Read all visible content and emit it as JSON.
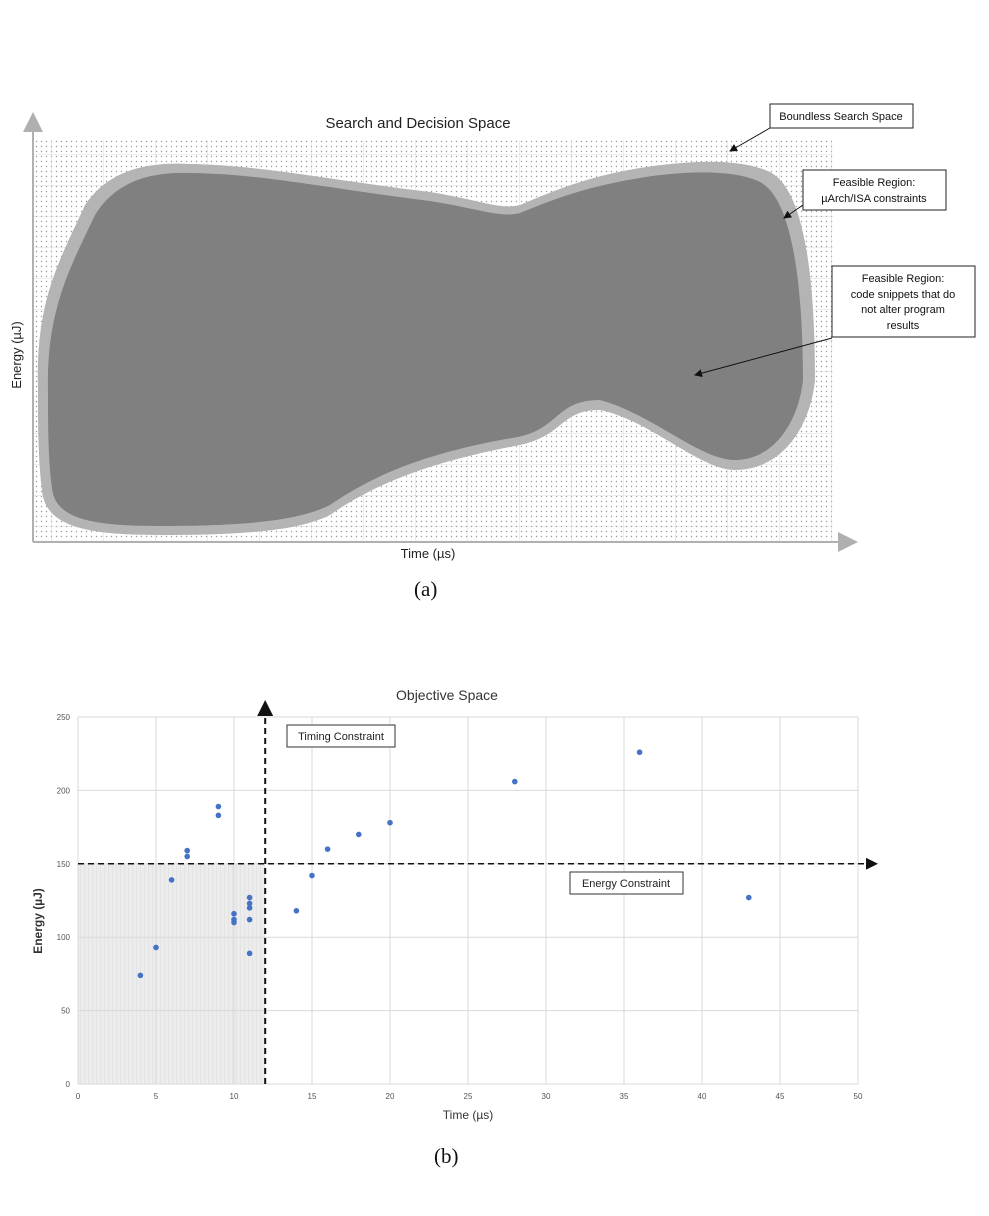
{
  "figure_a": {
    "title": "Search and Decision Space",
    "xlabel": "Time (µs)",
    "ylabel": "Energy (µJ)",
    "caption": "(a)",
    "annotations": {
      "boundless": "Boundless Search Space",
      "feasible_uarch": [
        "Feasible Region:",
        "µArch/ISA constraints"
      ],
      "feasible_code": [
        "Feasible Region:",
        "code snippets that do",
        "not alter program",
        "results"
      ]
    },
    "colors": {
      "region_fill": "#808080",
      "band": "#b4b4b4",
      "dots": "#9a9a9a"
    }
  },
  "chart_data": {
    "type": "scatter",
    "title": "Objective Space",
    "xlabel": "Time (µs)",
    "ylabel": "Energy (µJ)",
    "xlim": [
      0,
      50
    ],
    "ylim": [
      0,
      250
    ],
    "xticks": [
      "0",
      "5",
      "10",
      "15",
      "20",
      "25",
      "30",
      "35",
      "40",
      "45",
      "50"
    ],
    "yticks": [
      "0",
      "50",
      "100",
      "150",
      "200",
      "250"
    ],
    "grid": true,
    "timing_constraint": {
      "label": "Timing Constraint",
      "x": 12
    },
    "energy_constraint": {
      "label": "Energy Constraint",
      "y": 150
    },
    "shaded_region": {
      "x": [
        0,
        12
      ],
      "y": [
        0,
        150
      ]
    },
    "points": [
      {
        "x": 4,
        "y": 74
      },
      {
        "x": 5,
        "y": 93
      },
      {
        "x": 6,
        "y": 139
      },
      {
        "x": 7,
        "y": 155
      },
      {
        "x": 7,
        "y": 159
      },
      {
        "x": 9,
        "y": 183
      },
      {
        "x": 9,
        "y": 189
      },
      {
        "x": 10,
        "y": 110
      },
      {
        "x": 10,
        "y": 112
      },
      {
        "x": 10,
        "y": 116
      },
      {
        "x": 11,
        "y": 89
      },
      {
        "x": 11,
        "y": 112
      },
      {
        "x": 11,
        "y": 120
      },
      {
        "x": 11,
        "y": 123
      },
      {
        "x": 11,
        "y": 127
      },
      {
        "x": 14,
        "y": 118
      },
      {
        "x": 15,
        "y": 142
      },
      {
        "x": 16,
        "y": 160
      },
      {
        "x": 18,
        "y": 170
      },
      {
        "x": 20,
        "y": 178
      },
      {
        "x": 28,
        "y": 206
      },
      {
        "x": 36,
        "y": 226
      },
      {
        "x": 43,
        "y": 127
      }
    ],
    "caption": "(b)",
    "colors": {
      "points": "#4472c4",
      "shade": "#ebebeb",
      "grid": "#d9d9d9"
    }
  }
}
